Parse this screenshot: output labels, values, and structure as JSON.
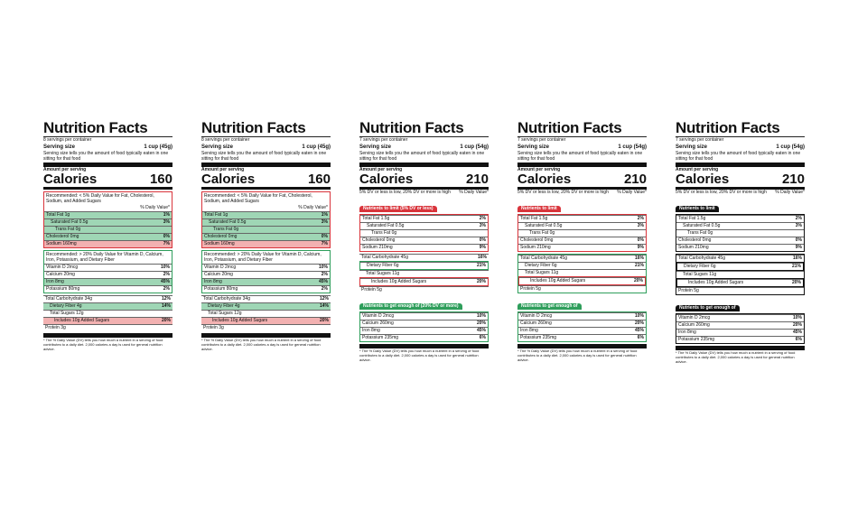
{
  "labels": [
    {
      "title": "Nutrition Facts",
      "servings": "8 servings per container",
      "serving_label": "Serving size",
      "serving_size": "1 cup (45g)",
      "serving_note": "Serving size tells you the amount of food typically eaten in one sitting for that food",
      "amount": "Amount per serving",
      "calories_label": "Calories",
      "calories": "160",
      "dv_header": "% Daily Value*",
      "groups": [
        {
          "note": "Recommended: < 5% Daily Value for Fat, Cholesterol, Sodium, and Added Sugars",
          "rows": [
            {
              "name": "Total Fat 1g",
              "dv": "1%"
            },
            {
              "name": "Saturated Fat 0.5g",
              "dv": "3%"
            },
            {
              "name": "Trans Fat 0g"
            },
            {
              "name": "Cholesterol 0mg",
              "dv": "0%"
            },
            {
              "name": "Sodium 160mg",
              "dv": "7%"
            }
          ]
        },
        {
          "note": "Recommended: > 20% Daily Value for Vitamin D, Calcium, Iron, Potassium, and Dietary Fiber",
          "rows": [
            {
              "name": "Vitamin D 2mcg",
              "dv": "10%"
            },
            {
              "name": "Calcium 20mg",
              "dv": "2%"
            },
            {
              "name": "Iron 8mg",
              "dv": "45%"
            },
            {
              "name": "Potassium 80mg",
              "dv": "2%"
            }
          ]
        },
        {
          "rows": [
            {
              "name": "Total Carbohydrate 34g",
              "dv": "12%"
            },
            {
              "name": "Dietary Fiber 4g",
              "dv": "14%"
            },
            {
              "name": "Total Sugars 12g"
            },
            {
              "name": "Includes 10g Added Sugars",
              "dv": "20%"
            },
            {
              "name": "Protein 3g"
            }
          ]
        }
      ],
      "footnote": "* The % Daily Value (DV) tells you how much a nutrient in a serving of food contributes to a daily diet. 2,000 calories a day is used for general nutrition advice."
    },
    {
      "title": "Nutrition Facts",
      "servings": "8 servings per container",
      "serving_label": "Serving size",
      "serving_size": "1 cup (45g)",
      "serving_note": "Serving size tells you the amount of food typically eaten in one sitting for that food",
      "amount": "Amount per serving",
      "calories_label": "Calories",
      "calories": "160",
      "dv_header": "% Daily Value*",
      "groups": [
        {
          "note": "Recommended: < 5% Daily Value for Fat, Cholesterol, Sodium, and Added Sugars",
          "rows": [
            {
              "name": "Total Fat 1g",
              "dv": "1%"
            },
            {
              "name": "Saturated Fat 0.5g",
              "dv": "3%"
            },
            {
              "name": "Trans Fat 0g"
            },
            {
              "name": "Cholesterol 0mg",
              "dv": "0%"
            },
            {
              "name": "Sodium 160mg",
              "dv": "7%"
            }
          ]
        },
        {
          "note": "Recommended: > 20% Daily Value for Vitamin D, Calcium, Iron, Potassium, and Dietary Fiber",
          "rows": [
            {
              "name": "Vitamin D 2mcg",
              "dv": "10%"
            },
            {
              "name": "Calcium 20mg",
              "dv": "2%"
            },
            {
              "name": "Iron 8mg",
              "dv": "45%"
            },
            {
              "name": "Potassium 80mg",
              "dv": "2%"
            }
          ]
        },
        {
          "rows": [
            {
              "name": "Total Carbohydrate 34g",
              "dv": "12%"
            },
            {
              "name": "Dietary Fiber 4g",
              "dv": "14%"
            },
            {
              "name": "Total Sugars 12g"
            },
            {
              "name": "Includes 10g Added Sugars",
              "dv": "20%"
            },
            {
              "name": "Protein 3g"
            }
          ]
        }
      ],
      "footnote": "* The % Daily Value (DV) tells you how much a nutrient in a serving of food contributes to a daily diet. 2,000 calories a day is used for general nutrition advice."
    },
    {
      "title": "Nutrition Facts",
      "servings": "7 servings per container",
      "serving_label": "Serving size",
      "serving_size": "1 cup (54g)",
      "serving_note": "Serving size tells you the amount of food typically eaten in one sitting for that food",
      "amount": "Amount per serving",
      "calories_label": "Calories",
      "calories": "210",
      "dv_header": "% Daily Value*",
      "scale_note": "5% DV or less is low, 20% DV or more is high",
      "groups": [
        {
          "heading": "Nutrients to limit (5% DV or less)",
          "rows": [
            {
              "name": "Total Fat 1.5g",
              "dv": "2%"
            },
            {
              "name": "Saturated Fat 0.5g",
              "dv": "3%"
            },
            {
              "name": "Trans Fat 0g"
            },
            {
              "name": "Cholesterol 0mg",
              "dv": "0%"
            },
            {
              "name": "Sodium 210mg",
              "dv": "9%"
            }
          ]
        },
        {
          "rows": [
            {
              "name": "Total Carbohydrate 45g",
              "dv": "16%"
            },
            {
              "name": "Dietary Fiber 6g",
              "dv": "21%"
            },
            {
              "name": "Total Sugars 11g"
            },
            {
              "name": "Includes 10g Added Sugars",
              "dv": "20%"
            },
            {
              "name": "Protein 5g"
            }
          ]
        },
        {
          "heading": "Nutrients to get enough of (20% DV or more)",
          "rows": [
            {
              "name": "Vitamin D 2mcg",
              "dv": "10%"
            },
            {
              "name": "Calcium 260mg",
              "dv": "20%"
            },
            {
              "name": "Iron 8mg",
              "dv": "45%"
            },
            {
              "name": "Potassium 235mg",
              "dv": "6%"
            }
          ]
        }
      ],
      "footnote": "* The % Daily Value (DV) tells you how much a nutrient in a serving of food contributes to a daily diet. 2,000 calories a day is used for general nutrition advice."
    },
    {
      "title": "Nutrition Facts",
      "servings": "7 servings per container",
      "serving_label": "Serving size",
      "serving_size": "1 cup (54g)",
      "serving_note": "Serving size tells you the amount of food typically eaten in one sitting for that food",
      "amount": "Amount per serving",
      "calories_label": "Calories",
      "calories": "210",
      "dv_header": "% Daily Value*",
      "scale_note": "5% DV or less is low, 20% DV or more is high",
      "groups": [
        {
          "heading": "Nutrients to limit",
          "rows": [
            {
              "name": "Total Fat 1.5g",
              "dv": "2%"
            },
            {
              "name": "Saturated Fat 0.5g",
              "dv": "3%"
            },
            {
              "name": "Trans Fat 0g"
            },
            {
              "name": "Cholesterol 0mg",
              "dv": "0%"
            },
            {
              "name": "Sodium 210mg",
              "dv": "9%"
            }
          ]
        },
        {
          "rows": [
            {
              "name": "Total Carbohydrate 45g",
              "dv": "16%"
            },
            {
              "name": "Dietary Fiber 6g",
              "dv": "21%"
            },
            {
              "name": "Total Sugars 11g"
            },
            {
              "name": "Includes 10g Added Sugars",
              "dv": "20%"
            },
            {
              "name": "Protein 5g"
            }
          ]
        },
        {
          "heading": "Nutrients to get enough of",
          "rows": [
            {
              "name": "Vitamin D 2mcg",
              "dv": "10%"
            },
            {
              "name": "Calcium 260mg",
              "dv": "20%"
            },
            {
              "name": "Iron 8mg",
              "dv": "45%"
            },
            {
              "name": "Potassium 235mg",
              "dv": "6%"
            }
          ]
        }
      ],
      "footnote": "* The % Daily Value (DV) tells you how much a nutrient in a serving of food contributes to a daily diet. 2,000 calories a day is used for general nutrition advice."
    },
    {
      "title": "Nutrition Facts",
      "servings": "7 servings per container",
      "serving_label": "Serving size",
      "serving_size": "1 cup (54g)",
      "serving_note": "Serving size tells you the amount of food typically eaten in one sitting for that food",
      "amount": "Amount per serving",
      "calories_label": "Calories",
      "calories": "210",
      "dv_header": "% Daily Value*",
      "scale_note": "5% DV or less is low, 20% DV or more is high",
      "groups": [
        {
          "heading": "Nutrients to limit",
          "rows": [
            {
              "name": "Total Fat 1.5g",
              "dv": "2%"
            },
            {
              "name": "Saturated Fat 0.5g",
              "dv": "3%"
            },
            {
              "name": "Trans Fat 0g"
            },
            {
              "name": "Cholesterol 0mg",
              "dv": "0%"
            },
            {
              "name": "Sodium 210mg",
              "dv": "9%"
            }
          ]
        },
        {
          "rows": [
            {
              "name": "Total Carbohydrate 45g",
              "dv": "16%"
            },
            {
              "name": "Dietary Fiber 6g",
              "dv": "21%"
            },
            {
              "name": "Total Sugars 11g"
            },
            {
              "name": "Includes 10g Added Sugars",
              "dv": "20%"
            },
            {
              "name": "Protein 5g"
            }
          ]
        },
        {
          "heading": "Nutrients to get enough of",
          "rows": [
            {
              "name": "Vitamin D 2mcg",
              "dv": "10%"
            },
            {
              "name": "Calcium 260mg",
              "dv": "20%"
            },
            {
              "name": "Iron 8mg",
              "dv": "45%"
            },
            {
              "name": "Potassium 235mg",
              "dv": "6%"
            }
          ]
        }
      ],
      "footnote": "* The % Daily Value (DV) tells you how much a nutrient in a serving of food contributes to a daily diet. 2,000 calories a day is used for general nutrition advice."
    }
  ]
}
